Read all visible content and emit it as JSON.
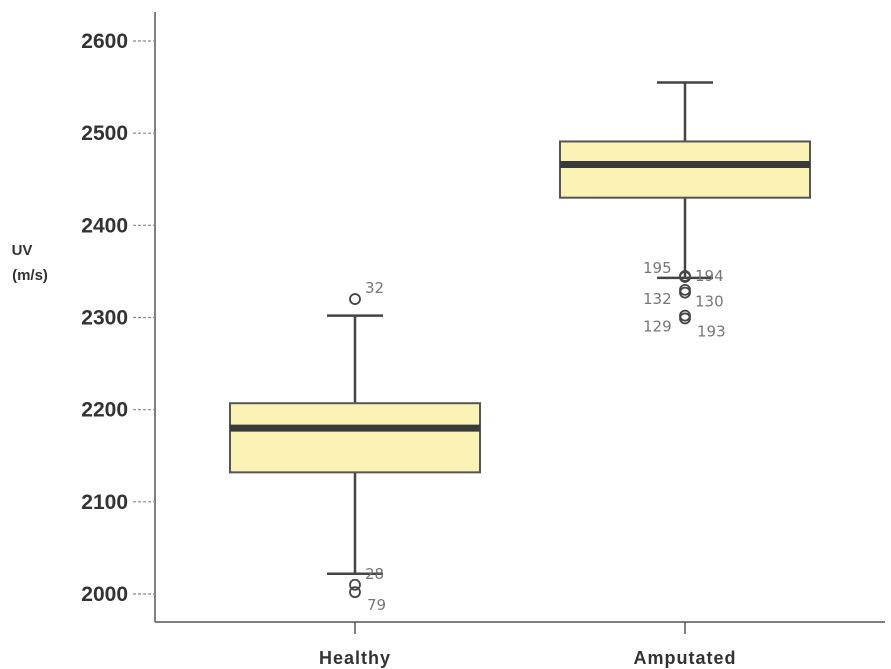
{
  "chart_data": {
    "type": "box",
    "ylabel_line1": "UV",
    "ylabel_line2": "(m/s)",
    "ylim": [
      1970,
      2630
    ],
    "yticks": [
      2000,
      2100,
      2200,
      2300,
      2400,
      2500,
      2600
    ],
    "categories": [
      "Healthy",
      "Amputated"
    ],
    "boxes": [
      {
        "category": "Healthy",
        "whisker_low": 2022,
        "q1": 2132,
        "median": 2180,
        "q3": 2207,
        "whisker_high": 2302,
        "outliers": [
          {
            "value": 2320,
            "label": "32"
          },
          {
            "value": 2010,
            "label": "28"
          },
          {
            "value": 2002,
            "label": "79"
          }
        ]
      },
      {
        "category": "Amputated",
        "whisker_low": 2343,
        "q1": 2430,
        "median": 2466,
        "q3": 2491,
        "whisker_high": 2555,
        "outliers": [
          {
            "value": 2345,
            "label": "195"
          },
          {
            "value": 2344,
            "label": "194"
          },
          {
            "value": 2330,
            "label": "132"
          },
          {
            "value": 2327,
            "label": "130"
          },
          {
            "value": 2302,
            "label": "129"
          },
          {
            "value": 2299,
            "label": "193"
          }
        ]
      }
    ],
    "colors": {
      "box_fill": "#fbf3b5",
      "box_stroke": "#555555",
      "median": "#3a3a3a",
      "whisker": "#444444",
      "axis": "#555555"
    }
  }
}
